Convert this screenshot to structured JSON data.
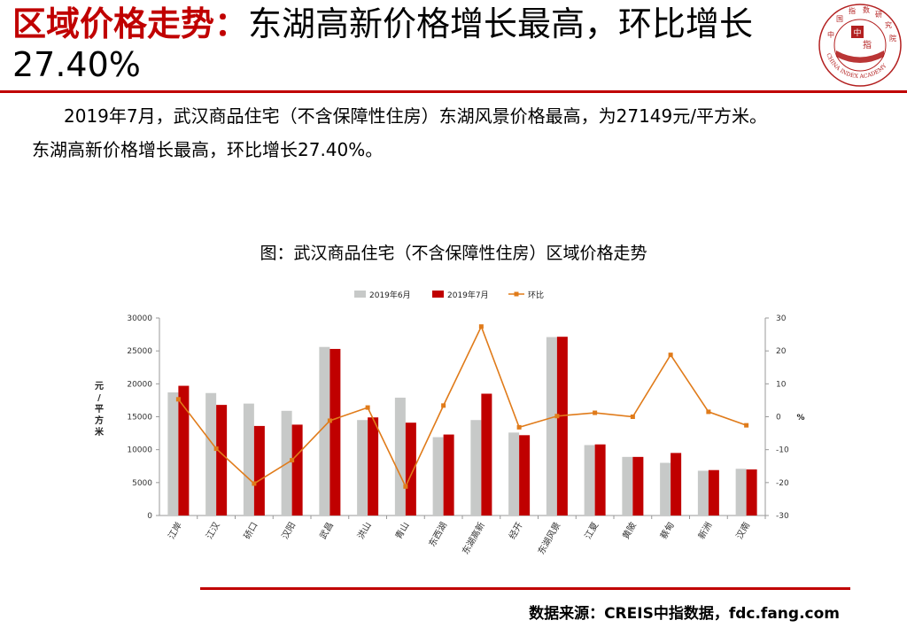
{
  "header": {
    "title_highlight": "区域价格走势：",
    "title_rest": "东湖高新价格增长最高，环比增长27.40%",
    "logo_chars": [
      "中",
      "国",
      "指",
      "数",
      "研",
      "究",
      "院"
    ],
    "logo_center_left": "中",
    "logo_center_right": "指",
    "logo_ring_text": "CHINA INDEX ACADEMY"
  },
  "body": {
    "para1": "2019年7月，武汉商品住宅（不含保障性住房）东湖风景价格最高，为27149元/平方米。",
    "para2": "东湖高新价格增长最高，环比增长27.40%。"
  },
  "chart_caption": "图：武汉商品住宅（不含保障性住房）区域价格走势",
  "chart_data": {
    "type": "bar",
    "categories": [
      "江岸",
      "江汉",
      "硚口",
      "汉阳",
      "武昌",
      "洪山",
      "青山",
      "东西湖",
      "东湖高新",
      "经开",
      "东湖风景",
      "江夏",
      "黄陂",
      "蔡甸",
      "新洲",
      "汉南"
    ],
    "series": [
      {
        "name": "2019年6月",
        "type": "bar",
        "axis": "left",
        "color": "#c7c9c8",
        "values": [
          18700,
          18600,
          17000,
          15900,
          25600,
          14500,
          17900,
          11900,
          14500,
          12600,
          27100,
          10700,
          8900,
          8000,
          6800,
          7100
        ]
      },
      {
        "name": "2019年7月",
        "type": "bar",
        "axis": "left",
        "color": "#c00000",
        "values": [
          19700,
          16800,
          13600,
          13800,
          25300,
          14900,
          14100,
          12300,
          18500,
          12200,
          27149,
          10800,
          8900,
          9500,
          6900,
          7000
        ]
      },
      {
        "name": "环比",
        "type": "line",
        "axis": "right",
        "color": "#e07b1a",
        "values": [
          5.3,
          -9.7,
          -20.3,
          -13.2,
          -1.2,
          2.8,
          -21.2,
          3.4,
          27.4,
          -3.2,
          0.2,
          1.2,
          0.0,
          18.8,
          1.5,
          -2.6
        ]
      }
    ],
    "y_left": {
      "label": "元/平方米",
      "min": 0,
      "max": 30000,
      "ticks": [
        0,
        5000,
        10000,
        15000,
        20000,
        25000,
        30000
      ]
    },
    "y_right": {
      "label": "%",
      "min": -30,
      "max": 30,
      "ticks": [
        -30,
        -20,
        -10,
        0,
        10,
        20,
        30
      ]
    },
    "legend_position": "top",
    "grid": false
  },
  "source": "数据来源：CREIS中指数据，fdc.fang.com"
}
